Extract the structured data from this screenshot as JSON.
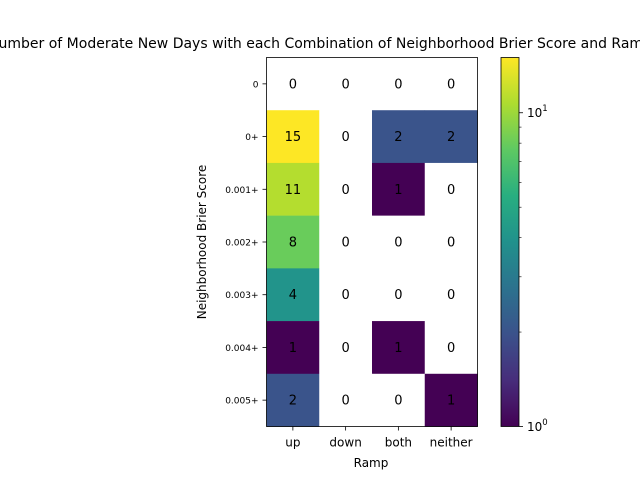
{
  "chart_data": {
    "type": "heatmap",
    "title": "Number of Moderate New Days with each Combination of Neighborhood Brier Score and Ramp",
    "xlabel": "Ramp",
    "ylabel": "Neighborhood Brier Score",
    "x_categories": [
      "up",
      "down",
      "both",
      "neither"
    ],
    "y_categories": [
      "0",
      "0+",
      "0.001+",
      "0.002+",
      "0.003+",
      "0.004+",
      "0.005+"
    ],
    "values": [
      [
        0,
        0,
        0,
        0
      ],
      [
        15,
        0,
        2,
        2
      ],
      [
        11,
        0,
        1,
        0
      ],
      [
        8,
        0,
        0,
        0
      ],
      [
        4,
        0,
        0,
        0
      ],
      [
        1,
        0,
        1,
        0
      ],
      [
        2,
        0,
        0,
        1
      ]
    ],
    "colorbar": {
      "scale": "log",
      "colormap": "viridis",
      "range": [
        1,
        15
      ],
      "major_ticks": [
        {
          "value": 1,
          "label": "10^0"
        },
        {
          "value": 10,
          "label": "10^1"
        }
      ],
      "minor_ticks": [
        2,
        3,
        4,
        5,
        6,
        7,
        8,
        9
      ]
    },
    "zero_cells_shown_as": "white"
  }
}
